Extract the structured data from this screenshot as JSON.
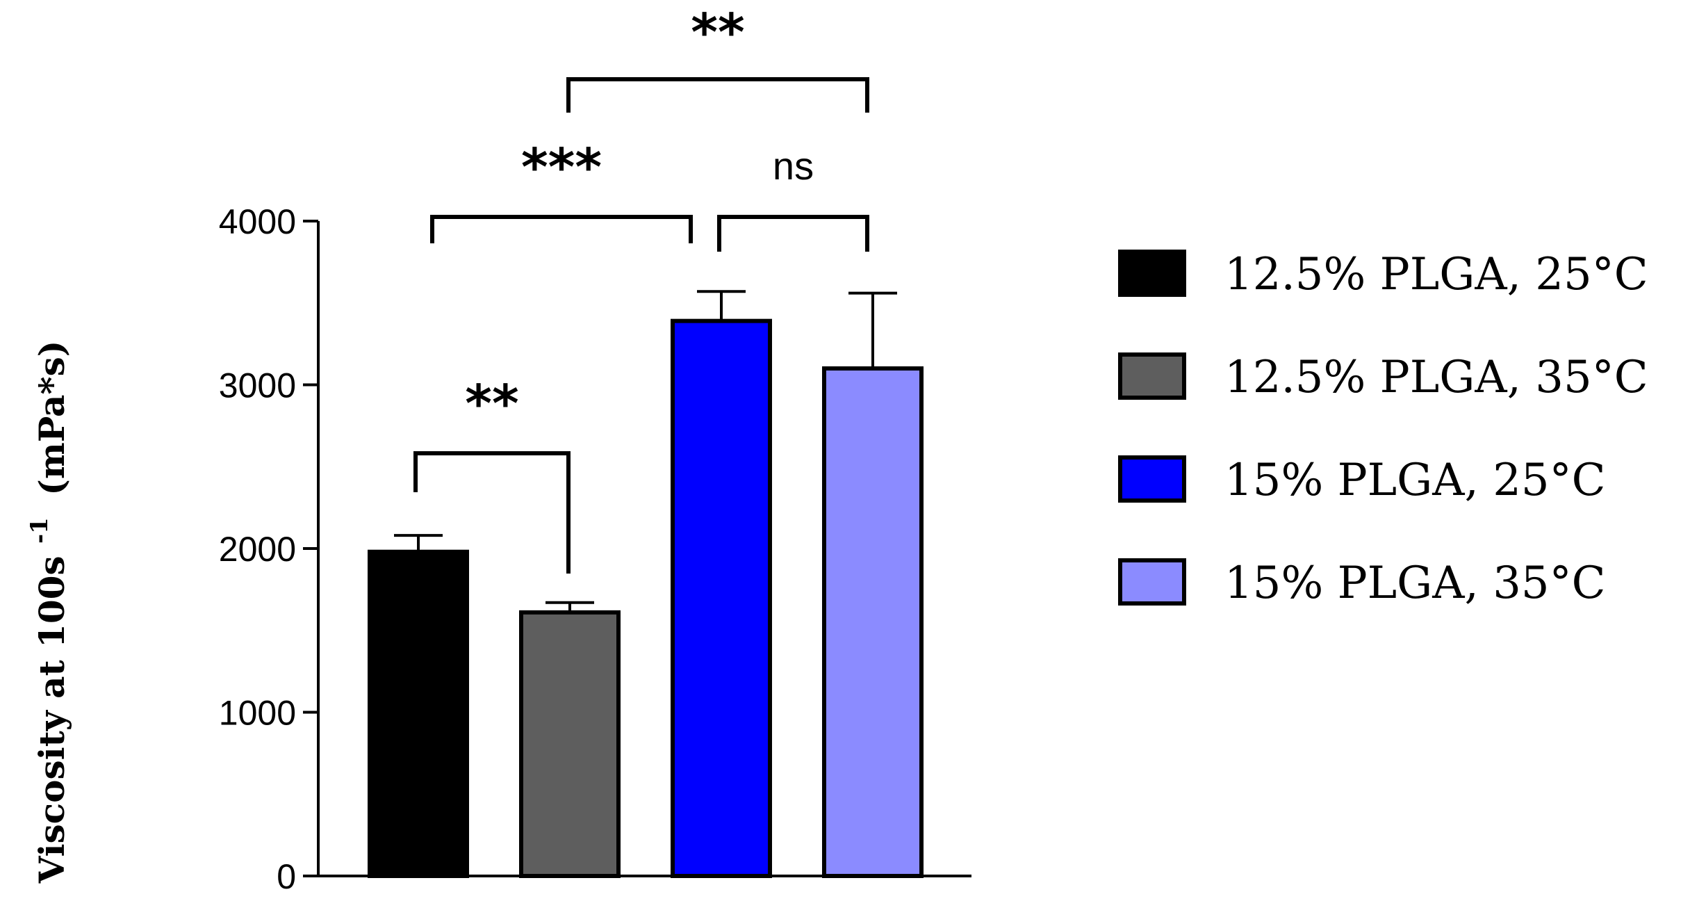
{
  "chart_data": {
    "type": "bar",
    "title": "",
    "xlabel": "",
    "ylabel": "Viscosity at 100s",
    "ylabel_superscript": "-1",
    "ylabel_unit": "(mPa*s)",
    "ylim": [
      0,
      4000
    ],
    "yticks": [
      0,
      1000,
      2000,
      3000,
      4000
    ],
    "series": [
      {
        "name": "12.5% PLGA, 25°C",
        "value": 1980,
        "error": 100,
        "color": "#000000"
      },
      {
        "name": "12.5% PLGA, 35°C",
        "value": 1610,
        "error": 60,
        "color": "#5e5e5e"
      },
      {
        "name": "15% PLGA, 25°C",
        "value": 3390,
        "error": 180,
        "color": "#0000ff"
      },
      {
        "name": "15% PLGA, 35°C",
        "value": 3100,
        "error": 460,
        "color": "#8b8bff"
      }
    ],
    "significance": [
      {
        "from": 0,
        "to": 1,
        "label": "**"
      },
      {
        "from": 0,
        "to": 2,
        "label": "***"
      },
      {
        "from": 2,
        "to": 3,
        "label": "ns"
      },
      {
        "from": 1,
        "to": 3,
        "label": "**"
      }
    ],
    "legend_position": "right",
    "grid": false
  }
}
